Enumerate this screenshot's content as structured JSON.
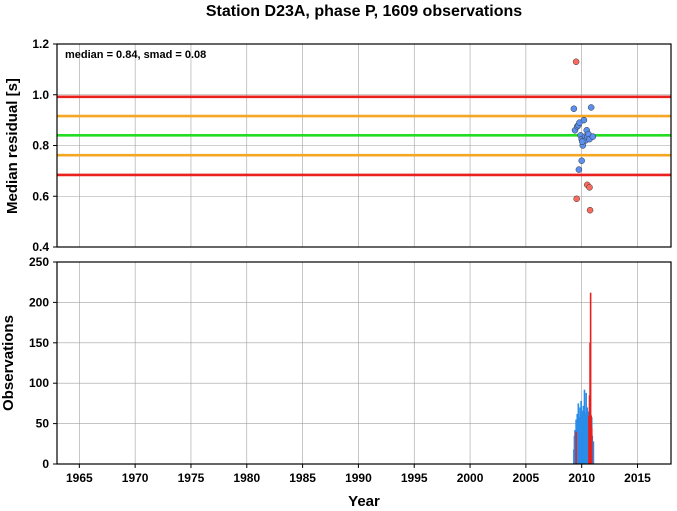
{
  "chart_data": [
    {
      "type": "scatter",
      "title": "Station D23A, phase P, 1609 observations",
      "ylabel": "Median residual [s]",
      "xlim": [
        1963,
        2018
      ],
      "ylim": [
        0.4,
        1.2
      ],
      "yticks": [
        "0.4",
        "0.6",
        "0.8",
        "1.0",
        "1.2"
      ],
      "grid": true,
      "annotation": "median = 0.84, smad = 0.08",
      "reference_lines": [
        {
          "y": 0.992,
          "color": "#e8201e"
        },
        {
          "y": 0.916,
          "color": "#f5a623"
        },
        {
          "y": 0.84,
          "color": "#22dd22"
        },
        {
          "y": 0.762,
          "color": "#f5a623"
        },
        {
          "y": 0.684,
          "color": "#e8201e"
        }
      ],
      "series": [
        {
          "color": "#5b8ff0",
          "x": [
            2009.3,
            2009.4,
            2009.6,
            2009.7,
            2009.8,
            2009.9,
            2010.0,
            2010.1,
            2010.2,
            2010.3,
            2010.35,
            2010.45,
            2010.5,
            2010.6,
            2010.7,
            2010.85,
            2011.0,
            2010.0,
            2009.75,
            2010.05
          ],
          "y": [
            0.945,
            0.86,
            0.875,
            0.88,
            0.89,
            0.84,
            0.825,
            0.8,
            0.9,
            0.835,
            0.82,
            0.86,
            0.835,
            0.845,
            0.825,
            0.95,
            0.835,
            0.74,
            0.705,
            0.815
          ]
        },
        {
          "color": "#fa6a5f",
          "x": [
            2009.5,
            2009.55,
            2010.5,
            2010.7,
            2010.75
          ],
          "y": [
            1.13,
            0.59,
            0.645,
            0.635,
            0.545
          ]
        }
      ]
    },
    {
      "type": "bar",
      "xlabel": "Year",
      "ylabel": "Observations",
      "xlim": [
        1963,
        2018
      ],
      "ylim": [
        0,
        250
      ],
      "xticks": [
        "1965",
        "1970",
        "1975",
        "1980",
        "1985",
        "1990",
        "1995",
        "2000",
        "2005",
        "2010",
        "2015"
      ],
      "yticks": [
        "0",
        "50",
        "100",
        "150",
        "200",
        "250"
      ],
      "grid": true,
      "series": [
        {
          "color": "#2a8ce8",
          "x": [
            2009.3,
            2009.35,
            2009.4,
            2009.45,
            2009.5,
            2009.55,
            2009.6,
            2009.65,
            2009.7,
            2009.75,
            2009.8,
            2009.85,
            2009.9,
            2009.95,
            2010.0,
            2010.05,
            2010.1,
            2010.15,
            2010.2,
            2010.25,
            2010.3,
            2010.35,
            2010.4,
            2010.45,
            2010.5,
            2010.55,
            2010.6,
            2010.65,
            2010.7,
            2010.75,
            2010.8,
            2010.85,
            2010.9,
            2010.95,
            2011.0,
            2011.05
          ],
          "values": [
            18,
            35,
            42,
            28,
            55,
            40,
            62,
            48,
            75,
            58,
            52,
            70,
            45,
            78,
            60,
            55,
            66,
            72,
            58,
            92,
            50,
            64,
            88,
            48,
            70,
            55,
            65,
            48,
            52,
            40,
            62,
            30,
            58,
            35,
            25,
            28
          ]
        },
        {
          "color": "#e8201e",
          "x": [
            2009.5,
            2010.65,
            2010.7,
            2010.75,
            2010.8,
            2010.85,
            2010.9
          ],
          "values": [
            40,
            60,
            85,
            150,
            212,
            60,
            45
          ]
        }
      ]
    }
  ]
}
